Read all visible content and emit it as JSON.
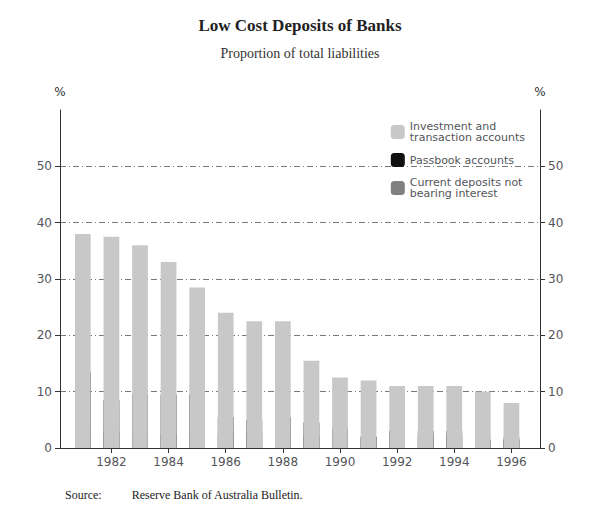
{
  "chart_data": {
    "type": "bar",
    "stacked": true,
    "title": "Low Cost Deposits of Banks",
    "subtitle": "Proportion of total liabilities",
    "ylabel": "%",
    "y2label": "%",
    "source": "Source:          Reserve Bank of Australia Bulletin.",
    "x": [
      1981,
      1982,
      1983,
      1984,
      1985,
      1986,
      1987,
      1988,
      1989,
      1990,
      1991,
      1992,
      1993,
      1994,
      1995,
      1996
    ],
    "series": [
      {
        "name": "Current deposits not\nbearing interest",
        "color": "#808080",
        "values": [
          3.5,
          3.0,
          2.5,
          2.5,
          2.5,
          2.5,
          2.5,
          2.0,
          2.0,
          2.0,
          2.0,
          2.0,
          2.0,
          2.0,
          1.5,
          2.0
        ]
      },
      {
        "name": "Passbook accounts",
        "color": "#111111",
        "values": [
          13.5,
          8.5,
          9.5,
          9.5,
          9.5,
          5.5,
          5.0,
          5.5,
          4.5,
          3.5,
          2.0,
          3.0,
          3.0,
          3.0,
          1.5,
          1.5
        ]
      },
      {
        "name": "Investment and\ntransaction accounts",
        "color": "#c8c8c8",
        "values": [
          38.0,
          37.5,
          36.0,
          33.0,
          28.5,
          24.0,
          22.5,
          22.5,
          15.5,
          12.5,
          12.0,
          11.0,
          11.0,
          11.0,
          10.0,
          8.0
        ]
      }
    ],
    "xlim": [
      1980.2,
      1997.0
    ],
    "xticks": [
      1982,
      1984,
      1986,
      1988,
      1990,
      1992,
      1994,
      1996
    ],
    "ylim": [
      0,
      60
    ],
    "yticks": [
      0,
      10,
      20,
      30,
      40,
      50
    ],
    "y2lim": [
      0,
      60
    ],
    "y2ticks": [
      0,
      10,
      20,
      30,
      40,
      50
    ],
    "grid": true,
    "legend": "upper right"
  }
}
